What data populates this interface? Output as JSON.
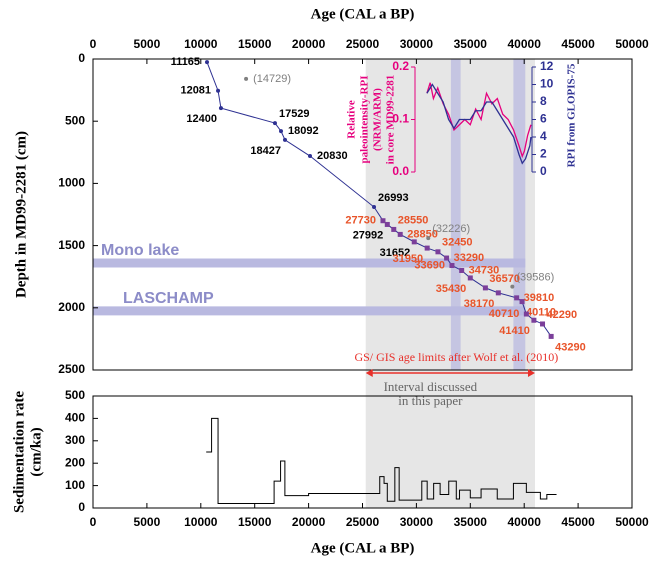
{
  "chart_data": [
    {
      "type": "age-depth",
      "xlabel": "Age (CAL a BP)",
      "ylabel": "Depth in MD99-2281 (cm)",
      "xlim": [
        0,
        50000
      ],
      "xticks": [
        0,
        5000,
        10000,
        15000,
        20000,
        25000,
        30000,
        35000,
        40000,
        45000,
        50000
      ],
      "ylim": [
        0,
        2500
      ],
      "yticks": [
        0,
        500,
        1000,
        1500,
        2000,
        2500
      ],
      "y_inverted": true,
      "shaded_interval": [
        25300,
        41000
      ],
      "shade_color": "#e6e6e6",
      "vertical_bands": [
        [
          33200,
          34100
        ],
        [
          39000,
          40100
        ]
      ],
      "horizontal_bands": [
        {
          "label": "Mono lake",
          "depth": 1640
        },
        {
          "label": "LASCHAMP",
          "depth": 2025
        }
      ],
      "band_color": "#b9b9e0",
      "band_label_color": "#8c8cc8",
      "limits_note": "GS/ GIS age limits after Wolf et al. (2010)",
      "limits_color": "#e8302a",
      "interval_note": [
        "Interval discussed",
        "in this paper"
      ],
      "series": [
        {
          "color": "#2e3192",
          "x": [
            10575,
            11600,
            11870,
            16880,
            17440,
            17810,
            20130,
            26070,
            26900,
            27300,
            27900,
            28500,
            29800,
            31000,
            32000,
            32800,
            33300,
            34200,
            35000,
            36400,
            37600,
            39300,
            39800,
            40200,
            40900,
            41700,
            42500
          ],
          "values": [
            25,
            255,
            395,
            515,
            580,
            650,
            780,
            1190,
            1300,
            1330,
            1370,
            1410,
            1470,
            1520,
            1550,
            1600,
            1660,
            1700,
            1760,
            1840,
            1880,
            1920,
            1950,
            2050,
            2100,
            2130,
            2230
          ],
          "labels": [
            "11165",
            "12081",
            "12400",
            "17529",
            "18092",
            "18427",
            "20830",
            "26993",
            "27730",
            "27992",
            "28550",
            "28850",
            "31652",
            "31950",
            "32450",
            "33290",
            "33690",
            "34730",
            "35430",
            "36570",
            "38170",
            "39810",
            "40110",
            "40710",
            "41410",
            "42290",
            "43290"
          ],
          "label_colors": [
            "#000000",
            "#000000",
            "#000000",
            "#000000",
            "#000000",
            "#000000",
            "#000000",
            "#000000",
            "#e8542a",
            "#000000",
            "#e8542a",
            "#e8542a",
            "#000000",
            "#e8542a",
            "#e8542a",
            "#e8542a",
            "#e8542a",
            "#e8542a",
            "#e8542a",
            "#e8542a",
            "#e8542a",
            "#e8542a",
            "#e8542a",
            "#e8542a",
            "#e8542a",
            "#e8542a",
            "#e8542a"
          ]
        },
        {
          "color": "#808080",
          "x": [
            14200,
            31100,
            38900
          ],
          "values": [
            160,
            1440,
            1830
          ],
          "labels": [
            "(14729)",
            "(32226)",
            "(39586)"
          ]
        }
      ]
    },
    {
      "type": "line",
      "xlim": [
        29900,
        40700
      ],
      "ylabel": [
        "Relative",
        "paleointensity-RPI",
        "(NRM/ARM)",
        "in core MD99-2281"
      ],
      "y2label": "RPI from GLOPIS-75",
      "ylim": [
        0,
        0.2
      ],
      "yticks": [
        {
          "value": 0,
          "label": "0.0"
        },
        0.1,
        0.2
      ],
      "y2lim": [
        0,
        12
      ],
      "y2ticks": [
        0,
        2,
        4,
        6,
        8,
        10,
        12
      ],
      "series": [
        {
          "color": "#e6007e",
          "axis": "y",
          "x": [
            31000,
            31300,
            31600,
            32000,
            32500,
            33000,
            33500,
            34000,
            34500,
            35000,
            35500,
            36000,
            36500,
            37000,
            37500,
            38000,
            38500,
            39000,
            39500,
            39800,
            40000,
            40300,
            40600
          ],
          "values": [
            0.15,
            0.17,
            0.14,
            0.16,
            0.13,
            0.11,
            0.08,
            0.09,
            0.1,
            0.09,
            0.12,
            0.1,
            0.15,
            0.13,
            0.14,
            0.11,
            0.1,
            0.08,
            0.05,
            0.03,
            0.04,
            0.07,
            0.09
          ]
        },
        {
          "color": "#2e3192",
          "axis": "y2",
          "x": [
            31000,
            31500,
            32000,
            32500,
            33000,
            33500,
            34000,
            34500,
            35000,
            35500,
            36000,
            36500,
            37000,
            37500,
            38000,
            38500,
            39000,
            39500,
            39800,
            40100,
            40500,
            40600
          ],
          "values": [
            9,
            10,
            9,
            8,
            6,
            5,
            6,
            6,
            6,
            7,
            7,
            8,
            8,
            7,
            6,
            5,
            4,
            2,
            1,
            1.5,
            3,
            4
          ]
        }
      ]
    },
    {
      "type": "step",
      "xlabel": "Age (CAL a BP)",
      "ylabel": [
        "Sedimentation rate",
        "(cm/ka)"
      ],
      "xlim": [
        0,
        50000
      ],
      "xticks": [
        0,
        5000,
        10000,
        15000,
        20000,
        25000,
        30000,
        35000,
        40000,
        45000,
        50000
      ],
      "ylim": [
        0,
        500
      ],
      "yticks": [
        0,
        100,
        200,
        300,
        400,
        500
      ],
      "series": [
        {
          "color": "#000000",
          "x": [
            10500,
            11000,
            11000,
            11600,
            11600,
            16800,
            16800,
            17400,
            17400,
            17800,
            17800,
            20000,
            20000,
            26600,
            26600,
            27000,
            27000,
            27300,
            27300,
            28000,
            28000,
            28400,
            28400,
            30500,
            30500,
            31000,
            31000,
            31600,
            31600,
            32200,
            32200,
            33000,
            33000,
            33700,
            33700,
            34000,
            34000,
            35000,
            35000,
            36000,
            36000,
            37500,
            37500,
            39000,
            39000,
            40200,
            40200,
            41500,
            41500,
            42100,
            42100,
            43000
          ],
          "values": [
            250,
            250,
            400,
            400,
            20,
            20,
            120,
            120,
            210,
            210,
            55,
            55,
            65,
            65,
            140,
            140,
            110,
            110,
            30,
            30,
            180,
            180,
            35,
            35,
            120,
            120,
            40,
            40,
            110,
            110,
            60,
            60,
            120,
            120,
            40,
            40,
            80,
            80,
            45,
            45,
            85,
            85,
            40,
            40,
            110,
            110,
            70,
            70,
            40,
            40,
            60,
            60
          ]
        }
      ]
    }
  ]
}
